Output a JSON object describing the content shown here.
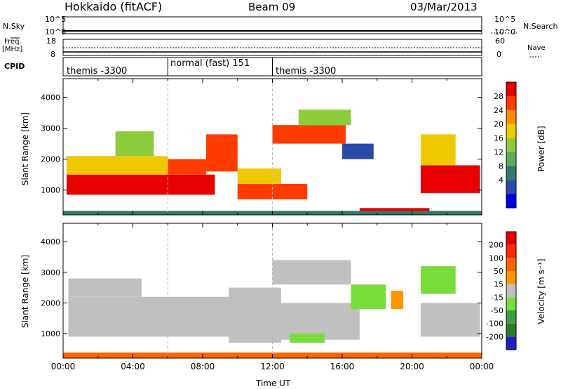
{
  "header": {
    "station": "Hokkaido (fitACF)",
    "beam": "Beam 09",
    "date": "03/Mar/2013"
  },
  "top_panels": {
    "left_labels": {
      "nsky": "N.Sky",
      "freq": "Freq.",
      "freq_unit": "[MHz]",
      "cpid": "CPID"
    },
    "right_labels": {
      "nsearch": "N.Search",
      "nave": "Nave"
    },
    "nsky_ticks": [
      "10^5",
      "10^0"
    ],
    "nsearch_ticks": [
      "10^5",
      "10^0"
    ],
    "freq_ticks": [
      "18",
      "8"
    ],
    "nave_ticks": [
      "60",
      "0"
    ],
    "cpid_segments": [
      {
        "label": "themis -3300",
        "start_hour": 0
      },
      {
        "label": "normal (fast) 151",
        "start_hour": 6
      },
      {
        "label": "themis -3300",
        "start_hour": 12
      }
    ]
  },
  "chart_data": [
    {
      "type": "heatmap",
      "name": "Power",
      "ylabel": "Slant Range [km]",
      "xlabel": "Time UT",
      "colorbar_label": "Power [dB]",
      "colorbar_ticks": [
        "28",
        "24",
        "20",
        "16",
        "12",
        "8",
        "4"
      ],
      "colors": [
        "#0000e6",
        "#2a4aa8",
        "#2f7a6a",
        "#5faa5a",
        "#8ccc3c",
        "#f0c800",
        "#ff8c00",
        "#ff3c00",
        "#e60000"
      ],
      "xlim": [
        0,
        24
      ],
      "ylim": [
        200,
        4600
      ],
      "yticks": [
        1000,
        2000,
        3000,
        4000
      ],
      "regions": [
        {
          "t": [
            0.2,
            8.7
          ],
          "r": [
            850,
            1500
          ],
          "level": 8
        },
        {
          "t": [
            0.2,
            6.0
          ],
          "r": [
            1500,
            2100
          ],
          "level": 5
        },
        {
          "t": [
            3.0,
            5.2
          ],
          "r": [
            2100,
            2900
          ],
          "level": 4
        },
        {
          "t": [
            6.0,
            8.2
          ],
          "r": [
            1500,
            2000
          ],
          "level": 7
        },
        {
          "t": [
            8.2,
            10.0
          ],
          "r": [
            1600,
            2800
          ],
          "level": 7
        },
        {
          "t": [
            10.0,
            14.0
          ],
          "r": [
            700,
            1200
          ],
          "level": 7
        },
        {
          "t": [
            10.0,
            12.5
          ],
          "r": [
            1200,
            1700
          ],
          "level": 5
        },
        {
          "t": [
            12.0,
            16.2
          ],
          "r": [
            2500,
            3100
          ],
          "level": 7
        },
        {
          "t": [
            13.5,
            16.5
          ],
          "r": [
            3100,
            3600
          ],
          "level": 4
        },
        {
          "t": [
            16.0,
            17.8
          ],
          "r": [
            2000,
            2500
          ],
          "level": 1
        },
        {
          "t": [
            17.0,
            21.0
          ],
          "r": [
            250,
            420
          ],
          "level": 8
        },
        {
          "t": [
            20.5,
            23.9
          ],
          "r": [
            900,
            1800
          ],
          "level": 8
        },
        {
          "t": [
            20.5,
            22.5
          ],
          "r": [
            1800,
            2800
          ],
          "level": 5
        },
        {
          "t": [
            0.0,
            24.0
          ],
          "r": [
            200,
            330
          ],
          "level": 2
        }
      ]
    },
    {
      "type": "heatmap",
      "name": "Velocity",
      "ylabel": "Slant Range [km]",
      "xlabel": "Time UT",
      "colorbar_label": "Velocity [m s⁻¹]",
      "colorbar_ticks": [
        "200",
        "100",
        "50",
        "15",
        "-15",
        "-50",
        "-100",
        "-200"
      ],
      "colors": [
        "#2020c8",
        "#2d7a2d",
        "#3ca03c",
        "#78dc3c",
        "#c0c0c0",
        "#ff9600",
        "#ff6400",
        "#ff2800",
        "#e60000"
      ],
      "xlim": [
        0,
        24
      ],
      "ylim": [
        200,
        4600
      ],
      "yticks": [
        1000,
        2000,
        3000,
        4000
      ],
      "regions": [
        {
          "t": [
            0.3,
            9.5
          ],
          "r": [
            900,
            2200
          ],
          "level": 4
        },
        {
          "t": [
            0.3,
            4.5
          ],
          "r": [
            2200,
            2800
          ],
          "level": 4
        },
        {
          "t": [
            9.5,
            12.5
          ],
          "r": [
            700,
            2500
          ],
          "level": 4
        },
        {
          "t": [
            12.5,
            17.0
          ],
          "r": [
            800,
            2000
          ],
          "level": 4
        },
        {
          "t": [
            12.0,
            16.5
          ],
          "r": [
            2600,
            3400
          ],
          "level": 4
        },
        {
          "t": [
            16.5,
            18.5
          ],
          "r": [
            1800,
            2600
          ],
          "level": 3
        },
        {
          "t": [
            18.8,
            19.5
          ],
          "r": [
            1800,
            2400
          ],
          "level": 5
        },
        {
          "t": [
            20.5,
            22.5
          ],
          "r": [
            2300,
            3200
          ],
          "level": 3
        },
        {
          "t": [
            20.5,
            23.9
          ],
          "r": [
            900,
            2000
          ],
          "level": 4
        },
        {
          "t": [
            13.0,
            15.0
          ],
          "r": [
            700,
            1000
          ],
          "level": 3
        },
        {
          "t": [
            0.0,
            24.0
          ],
          "r": [
            200,
            380
          ],
          "level": 6
        }
      ]
    }
  ],
  "xaxis": {
    "ticks": [
      "00:00",
      "04:00",
      "08:00",
      "12:00",
      "16:00",
      "20:00",
      "00:00"
    ],
    "label": "Time UT"
  },
  "range_unit": "[km]"
}
